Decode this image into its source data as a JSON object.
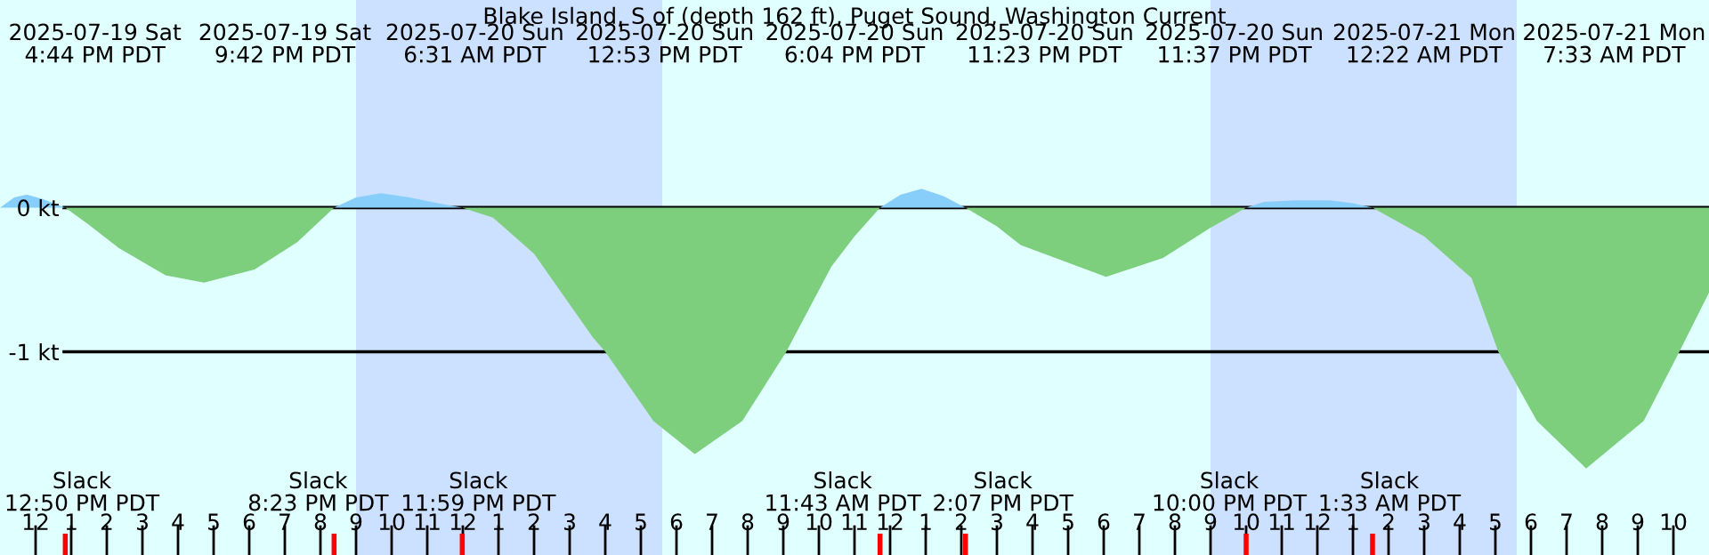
{
  "chart_data": {
    "type": "area",
    "title": "Blake Island, S of (depth 162 ft), Puget Sound, Washington Current",
    "series": [
      {
        "color": "#87cefa",
        "x": [
          "2025-07-19T11:00",
          "2025-07-19T11:24",
          "2025-07-19T11:45",
          "2025-07-19T12:12",
          "2025-07-19T12:50",
          null,
          "2025-07-19T20:23",
          "2025-07-19T21:00",
          "2025-07-19T21:42",
          "2025-07-19T22:30",
          "2025-07-19T23:18",
          "2025-07-19T23:59",
          null,
          "2025-07-20T11:43",
          "2025-07-20T12:18",
          "2025-07-20T12:53",
          "2025-07-20T13:30",
          "2025-07-20T14:07",
          null,
          "2025-07-20T22:00",
          "2025-07-20T22:30",
          "2025-07-20T23:23",
          "2025-07-20T23:37",
          "2025-07-21T00:22",
          "2025-07-21T01:00",
          "2025-07-21T01:33"
        ],
        "values": [
          0.0,
          0.07,
          0.09,
          0.06,
          0.0,
          null,
          0.0,
          0.07,
          0.1,
          0.07,
          0.03,
          0.0,
          null,
          0.0,
          0.09,
          0.13,
          0.08,
          0.0,
          null,
          0.0,
          0.04,
          0.05,
          0.05,
          0.05,
          0.03,
          0.0
        ]
      },
      {
        "color": "#7dcf7d",
        "x": [
          "2025-07-19T12:50",
          "2025-07-19T13:30",
          "2025-07-19T14:20",
          "2025-07-19T15:39",
          "2025-07-19T16:44",
          "2025-07-19T18:09",
          "2025-07-19T19:21",
          "2025-07-19T20:23",
          null,
          "2025-07-19T23:59",
          "2025-07-20T00:51",
          "2025-07-20T02:00",
          "2025-07-20T03:39",
          "2025-07-20T04:00",
          "2025-07-20T05:21",
          "2025-07-20T06:31",
          "2025-07-20T07:51",
          "2025-07-20T09:05",
          "2025-07-20T10:21",
          "2025-07-20T11:00",
          "2025-07-20T11:43",
          null,
          "2025-07-20T14:07",
          "2025-07-20T15:00",
          "2025-07-20T15:40",
          "2025-07-20T18:04",
          "2025-07-20T19:40",
          "2025-07-20T21:00",
          "2025-07-20T22:00",
          null,
          "2025-07-21T01:33",
          "2025-07-21T03:00",
          "2025-07-21T04:20",
          "2025-07-21T05:05",
          "2025-07-21T06:10",
          "2025-07-21T07:33",
          "2025-07-21T09:10",
          "2025-07-21T10:10",
          "2025-07-21T11:00"
        ],
        "values": [
          0.0,
          -0.12,
          -0.28,
          -0.47,
          -0.52,
          -0.43,
          -0.24,
          0.0,
          null,
          0.0,
          -0.07,
          -0.32,
          -0.9,
          -1.0,
          -1.48,
          -1.71,
          -1.48,
          -1.0,
          -0.41,
          -0.2,
          0.0,
          null,
          0.0,
          -0.13,
          -0.26,
          -0.48,
          -0.35,
          -0.14,
          0.0,
          null,
          0.0,
          -0.2,
          -0.49,
          -1.0,
          -1.48,
          -1.81,
          -1.48,
          -1.0,
          -0.59
        ]
      }
    ],
    "xlim": [
      "2025-07-19T11:00",
      "2025-07-21T11:00"
    ],
    "ylim": [
      -2.41,
      1.44
    ],
    "xticks": [
      {
        "value": "2025-07-19T12:00",
        "label": "12"
      },
      {
        "value": "2025-07-19T13:00",
        "label": "1"
      },
      {
        "value": "2025-07-19T14:00",
        "label": "2"
      },
      {
        "value": "2025-07-19T15:00",
        "label": "3"
      },
      {
        "value": "2025-07-19T16:00",
        "label": "4"
      },
      {
        "value": "2025-07-19T17:00",
        "label": "5"
      },
      {
        "value": "2025-07-19T18:00",
        "label": "6"
      },
      {
        "value": "2025-07-19T19:00",
        "label": "7"
      },
      {
        "value": "2025-07-19T20:00",
        "label": "8"
      },
      {
        "value": "2025-07-19T21:00",
        "label": "9"
      },
      {
        "value": "2025-07-19T22:00",
        "label": "10"
      },
      {
        "value": "2025-07-19T23:00",
        "label": "11"
      },
      {
        "value": "2025-07-20T00:00",
        "label": "12"
      },
      {
        "value": "2025-07-20T01:00",
        "label": "1"
      },
      {
        "value": "2025-07-20T02:00",
        "label": "2"
      },
      {
        "value": "2025-07-20T03:00",
        "label": "3"
      },
      {
        "value": "2025-07-20T04:00",
        "label": "4"
      },
      {
        "value": "2025-07-20T05:00",
        "label": "5"
      },
      {
        "value": "2025-07-20T06:00",
        "label": "6"
      },
      {
        "value": "2025-07-20T07:00",
        "label": "7"
      },
      {
        "value": "2025-07-20T08:00",
        "label": "8"
      },
      {
        "value": "2025-07-20T09:00",
        "label": "9"
      },
      {
        "value": "2025-07-20T10:00",
        "label": "10"
      },
      {
        "value": "2025-07-20T11:00",
        "label": "11"
      },
      {
        "value": "2025-07-20T12:00",
        "label": "12"
      },
      {
        "value": "2025-07-20T13:00",
        "label": "1"
      },
      {
        "value": "2025-07-20T14:00",
        "label": "2"
      },
      {
        "value": "2025-07-20T15:00",
        "label": "3"
      },
      {
        "value": "2025-07-20T16:00",
        "label": "4"
      },
      {
        "value": "2025-07-20T17:00",
        "label": "5"
      },
      {
        "value": "2025-07-20T18:00",
        "label": "6"
      },
      {
        "value": "2025-07-20T19:00",
        "label": "7"
      },
      {
        "value": "2025-07-20T20:00",
        "label": "8"
      },
      {
        "value": "2025-07-20T21:00",
        "label": "9"
      },
      {
        "value": "2025-07-20T22:00",
        "label": "10"
      },
      {
        "value": "2025-07-20T23:00",
        "label": "11"
      },
      {
        "value": "2025-07-21T00:00",
        "label": "12"
      },
      {
        "value": "2025-07-21T01:00",
        "label": "1"
      },
      {
        "value": "2025-07-21T02:00",
        "label": "2"
      },
      {
        "value": "2025-07-21T03:00",
        "label": "3"
      },
      {
        "value": "2025-07-21T04:00",
        "label": "4"
      },
      {
        "value": "2025-07-21T05:00",
        "label": "5"
      },
      {
        "value": "2025-07-21T06:00",
        "label": "6"
      },
      {
        "value": "2025-07-21T07:00",
        "label": "7"
      },
      {
        "value": "2025-07-21T08:00",
        "label": "8"
      },
      {
        "value": "2025-07-21T09:00",
        "label": "9"
      },
      {
        "value": "2025-07-21T10:00",
        "label": "10"
      },
      {
        "value": "2025-07-19T12:50",
        "label": null
      },
      {
        "value": "2025-07-19T20:23",
        "label": null
      },
      {
        "value": "2025-07-19T23:59",
        "label": null
      },
      {
        "value": "2025-07-20T11:43",
        "label": null
      },
      {
        "value": "2025-07-20T14:07",
        "label": null
      },
      {
        "value": "2025-07-20T22:00",
        "label": null
      },
      {
        "value": "2025-07-21T01:33",
        "label": null
      }
    ],
    "yticks": [
      {
        "value": 0,
        "label": "0 kt"
      },
      {
        "value": -1,
        "label": "-1 kt"
      }
    ],
    "grid": "y",
    "bands": [
      {
        "axis": "x",
        "from": "2025-07-19T21:00",
        "to": "2025-07-20T05:36",
        "color": "#cce0ff"
      },
      {
        "axis": "x",
        "from": "2025-07-20T21:00",
        "to": "2025-07-21T05:36",
        "color": "#cce0ff"
      }
    ],
    "annotations": [
      "2025-07-19 Sat\n4:44 PM PDT",
      "2025-07-19 Sat\n9:42 PM PDT",
      "2025-07-20 Sun\n6:31 AM PDT",
      "2025-07-20 Sun\n12:53 PM PDT",
      "2025-07-20 Sun\n6:04 PM PDT",
      "2025-07-20 Sun\n11:23 PM PDT",
      "2025-07-20 Sun\n11:37 PM PDT",
      "2025-07-21 Mon\n12:22 AM PDT",
      "2025-07-21 Mon\n7:33 AM PDT",
      "Slack\n12:50 PM PDT",
      "Slack\n8:23 PM PDT",
      "Slack\n11:59 PM PDT",
      "Slack\n11:43 AM PDT",
      "Slack\n2:07 PM PDT",
      "Slack\n10:00 PM PDT",
      "Slack\n1:33 AM PDT"
    ]
  }
}
